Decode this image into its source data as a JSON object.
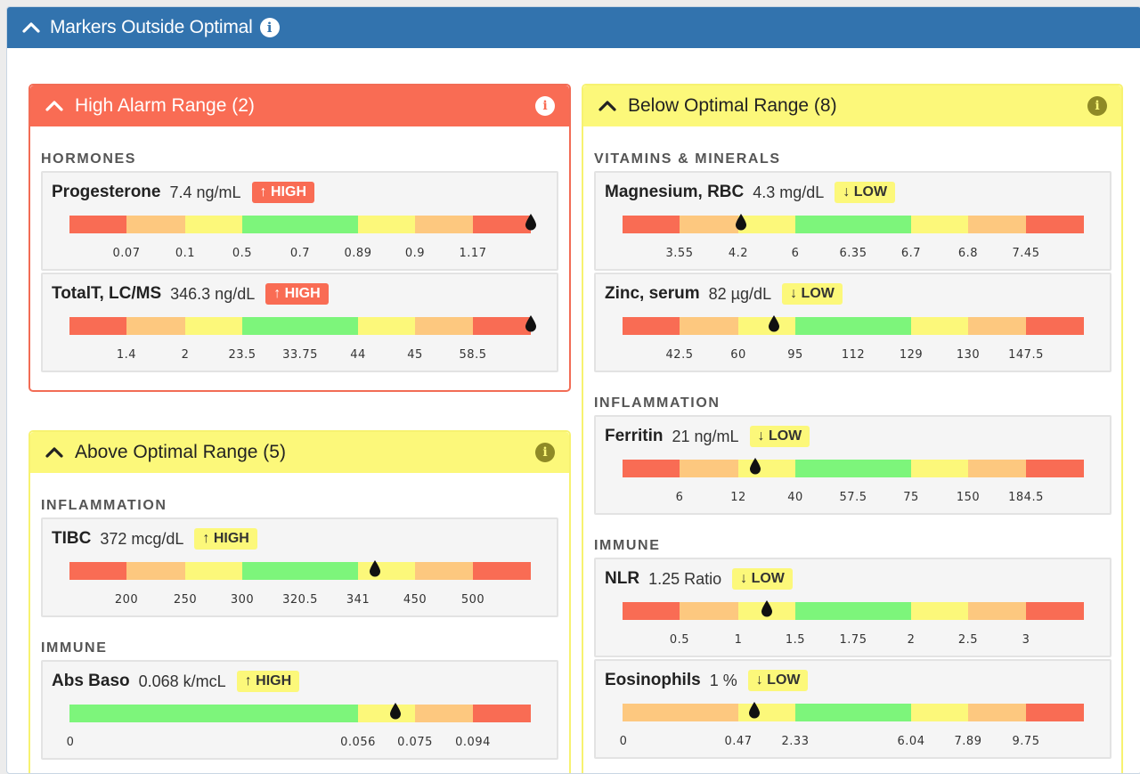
{
  "outer": {
    "title": "Markers Outside Optimal"
  },
  "high_alarm": {
    "title": "High Alarm Range (2)",
    "categories": [
      {
        "name": "HORMONES",
        "markers": [
          {
            "name": "Progesterone",
            "value": "7.4 ng/mL",
            "flag": "↑ HIGH",
            "ticks": [
              "0.07",
              "0.1",
              "0.5",
              "0.7",
              "0.89",
              "0.9",
              "1.17"
            ]
          },
          {
            "name": "TotalT, LC/MS",
            "value": "346.3 ng/dL",
            "flag": "↑ HIGH",
            "ticks": [
              "1.4",
              "2",
              "23.5",
              "33.75",
              "44",
              "45",
              "58.5"
            ]
          }
        ]
      }
    ]
  },
  "above_optimal": {
    "title": "Above Optimal Range (5)",
    "categories": [
      {
        "name": "INFLAMMATION",
        "markers": [
          {
            "name": "TIBC",
            "value": "372 mcg/dL",
            "flag": "↑ HIGH",
            "ticks": [
              "200",
              "250",
              "300",
              "320.5",
              "341",
              "450",
              "500"
            ]
          }
        ]
      },
      {
        "name": "IMMUNE",
        "markers": [
          {
            "name": "Abs Baso",
            "value": "0.068 k/mcL",
            "flag": "↑ HIGH",
            "ticks": [
              "0",
              "0.056",
              "0.075",
              "0.094"
            ]
          }
        ]
      }
    ]
  },
  "below_optimal": {
    "title": "Below Optimal Range (8)",
    "categories": [
      {
        "name": "VITAMINS & MINERALS",
        "markers": [
          {
            "name": "Magnesium, RBC",
            "value": "4.3 mg/dL",
            "flag": "↓ LOW",
            "ticks": [
              "3.55",
              "4.2",
              "6",
              "6.35",
              "6.7",
              "6.8",
              "7.45"
            ]
          },
          {
            "name": "Zinc, serum",
            "value": "82 µg/dL",
            "flag": "↓ LOW",
            "ticks": [
              "42.5",
              "60",
              "95",
              "112",
              "129",
              "130",
              "147.5"
            ]
          }
        ]
      },
      {
        "name": "INFLAMMATION",
        "markers": [
          {
            "name": "Ferritin",
            "value": "21 ng/mL",
            "flag": "↓ LOW",
            "ticks": [
              "6",
              "12",
              "40",
              "57.5",
              "75",
              "150",
              "184.5"
            ]
          }
        ]
      },
      {
        "name": "IMMUNE",
        "markers": [
          {
            "name": "NLR",
            "value": "1.25 Ratio",
            "flag": "↓ LOW",
            "ticks": [
              "0.5",
              "1",
              "1.5",
              "1.75",
              "2",
              "2.5",
              "3"
            ]
          },
          {
            "name": "Eosinophils",
            "value": "1 %",
            "flag": "↓ LOW",
            "ticks": [
              "0",
              "0.47",
              "2.33",
              "6.04",
              "7.89",
              "9.75"
            ]
          }
        ]
      }
    ]
  },
  "colors": {
    "red": "#f96c54",
    "orange": "#fdc87f",
    "yellow": "#fcf87a",
    "green": "#7df57b",
    "header_blue": "#3273ae"
  }
}
